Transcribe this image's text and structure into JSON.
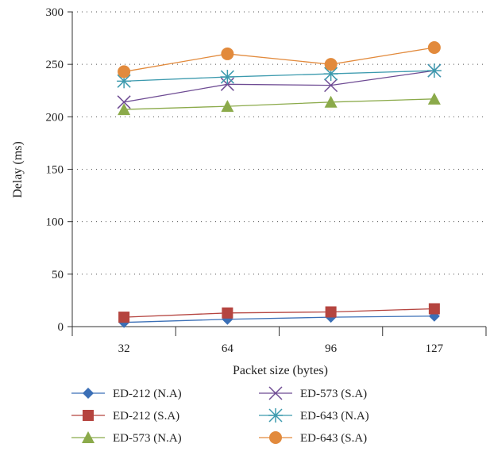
{
  "chart_data": {
    "type": "line",
    "categories": [
      "32",
      "64",
      "96",
      "127"
    ],
    "xlabel": "Packet size (bytes)",
    "ylabel": "Delay (ms)",
    "ylim": [
      0,
      300
    ],
    "yticks": [
      0,
      50,
      100,
      150,
      200,
      250,
      300
    ],
    "grid": "horizontal dotted",
    "legend_position": "bottom",
    "series": [
      {
        "name": "ED-212 (N.A)",
        "values": [
          4,
          7,
          9,
          10
        ],
        "color": "#3B6FB6",
        "marker": "diamond"
      },
      {
        "name": "ED-212 (S.A)",
        "values": [
          9,
          13,
          14,
          17
        ],
        "color": "#B5443F",
        "marker": "square"
      },
      {
        "name": "ED-573 (N.A)",
        "values": [
          207,
          210,
          214,
          217
        ],
        "color": "#8BAA4A",
        "marker": "triangle"
      },
      {
        "name": "ED-573 (S.A)",
        "values": [
          214,
          231,
          230,
          244
        ],
        "color": "#6E4B93",
        "marker": "x"
      },
      {
        "name": "ED-643 (N.A)",
        "values": [
          234,
          238,
          241,
          244
        ],
        "color": "#3C9AAE",
        "marker": "asterisk"
      },
      {
        "name": "ED-643 (S.A)",
        "values": [
          243,
          260,
          250,
          266
        ],
        "color": "#E28A3C",
        "marker": "circle"
      }
    ]
  }
}
